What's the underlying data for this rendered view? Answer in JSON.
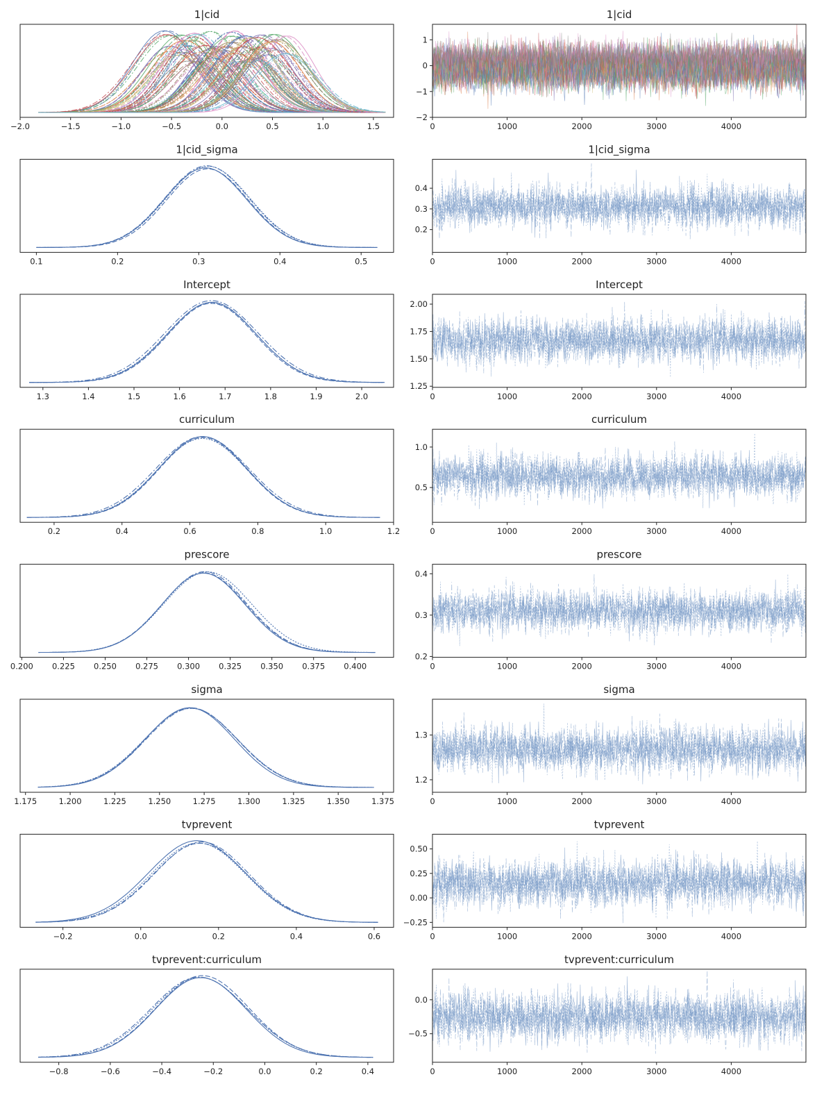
{
  "chart_data": [
    {
      "type": "line",
      "subtype": "kde",
      "title": "1|cid",
      "xlim": [
        -2.0,
        1.7
      ],
      "ticks": [
        -2.0,
        -1.5,
        -1.0,
        -0.5,
        0.0,
        0.5,
        1.0,
        1.5
      ],
      "tick_labels": [
        "−2.0",
        "−1.5",
        "−1.0",
        "−0.5",
        "0.0",
        "0.5",
        "1.0",
        "1.5"
      ],
      "support": [
        -1.82,
        1.62
      ],
      "many_groups": true,
      "group_range": [
        -0.55,
        0.6
      ],
      "group_sd": 0.3,
      "mean": 0.05,
      "sd": 0.3
    },
    {
      "type": "line",
      "subtype": "trace",
      "title": "1|cid",
      "xlim": [
        0,
        5000
      ],
      "ylim": [
        -2,
        1.6
      ],
      "xticks": [
        0,
        1000,
        2000,
        3000,
        4000
      ],
      "yticks": [
        -2,
        -1,
        0,
        1
      ],
      "ytick_labels": [
        "−2",
        "−1",
        "0",
        "1"
      ],
      "many_groups": true,
      "draw_range": [
        -1.9,
        1.6
      ],
      "mean": 0.05,
      "sd": 0.3
    },
    {
      "type": "line",
      "subtype": "kde",
      "title": "1|cid_sigma",
      "xlim": [
        0.08,
        0.54
      ],
      "ticks": [
        0.1,
        0.2,
        0.3,
        0.4,
        0.5
      ],
      "tick_labels": [
        "0.1",
        "0.2",
        "0.3",
        "0.4",
        "0.5"
      ],
      "support": [
        0.1,
        0.52
      ],
      "mean": 0.31,
      "sd": 0.05
    },
    {
      "type": "line",
      "subtype": "trace",
      "title": "1|cid_sigma",
      "xlim": [
        0,
        5000
      ],
      "ylim": [
        0.09,
        0.54
      ],
      "xticks": [
        0,
        1000,
        2000,
        3000,
        4000
      ],
      "yticks": [
        0.2,
        0.3,
        0.4
      ],
      "ytick_labels": [
        "0.2",
        "0.3",
        "0.4"
      ],
      "draw_range": [
        0.1,
        0.52
      ],
      "mean": 0.31,
      "sd": 0.05
    },
    {
      "type": "line",
      "subtype": "kde",
      "title": "Intercept",
      "xlim": [
        1.25,
        2.07
      ],
      "ticks": [
        1.3,
        1.4,
        1.5,
        1.6,
        1.7,
        1.8,
        1.9,
        2.0
      ],
      "tick_labels": [
        "1.3",
        "1.4",
        "1.5",
        "1.6",
        "1.7",
        "1.8",
        "1.9",
        "2.0"
      ],
      "support": [
        1.27,
        2.05
      ],
      "mean": 1.67,
      "sd": 0.1
    },
    {
      "type": "line",
      "subtype": "trace",
      "title": "Intercept",
      "xlim": [
        0,
        5000
      ],
      "ylim": [
        1.24,
        2.09
      ],
      "xticks": [
        0,
        1000,
        2000,
        3000,
        4000
      ],
      "yticks": [
        1.25,
        1.5,
        1.75,
        2.0
      ],
      "ytick_labels": [
        "1.25",
        "1.50",
        "1.75",
        "2.00"
      ],
      "draw_range": [
        1.27,
        2.06
      ],
      "mean": 1.67,
      "sd": 0.1
    },
    {
      "type": "line",
      "subtype": "kde",
      "title": "curriculum",
      "xlim": [
        0.1,
        1.2
      ],
      "ticks": [
        0.2,
        0.4,
        0.6,
        0.8,
        1.0,
        1.2
      ],
      "tick_labels": [
        "0.2",
        "0.4",
        "0.6",
        "0.8",
        "1.0",
        "1.2"
      ],
      "support": [
        0.12,
        1.16
      ],
      "mean": 0.64,
      "sd": 0.13
    },
    {
      "type": "line",
      "subtype": "trace",
      "title": "curriculum",
      "xlim": [
        0,
        5000
      ],
      "ylim": [
        0.07,
        1.22
      ],
      "xticks": [
        0,
        1000,
        2000,
        3000,
        4000
      ],
      "yticks": [
        0.5,
        1.0
      ],
      "ytick_labels": [
        "0.5",
        "1.0"
      ],
      "draw_range": [
        0.12,
        1.17
      ],
      "mean": 0.64,
      "sd": 0.13
    },
    {
      "type": "line",
      "subtype": "kde",
      "title": "prescore",
      "xlim": [
        0.199,
        0.423
      ],
      "ticks": [
        0.2,
        0.225,
        0.25,
        0.275,
        0.3,
        0.325,
        0.35,
        0.375,
        0.4
      ],
      "tick_labels": [
        "0.200",
        "0.225",
        "0.250",
        "0.275",
        "0.300",
        "0.325",
        "0.350",
        "0.375",
        "0.400"
      ],
      "support": [
        0.21,
        0.412
      ],
      "mean": 0.31,
      "sd": 0.025
    },
    {
      "type": "line",
      "subtype": "trace",
      "title": "prescore",
      "xlim": [
        0,
        5000
      ],
      "ylim": [
        0.198,
        0.423
      ],
      "xticks": [
        0,
        1000,
        2000,
        3000,
        4000
      ],
      "yticks": [
        0.2,
        0.3,
        0.4
      ],
      "ytick_labels": [
        "0.2",
        "0.3",
        "0.4"
      ],
      "draw_range": [
        0.21,
        0.413
      ],
      "mean": 0.31,
      "sd": 0.025
    },
    {
      "type": "line",
      "subtype": "kde",
      "title": "sigma",
      "xlim": [
        1.172,
        1.381
      ],
      "ticks": [
        1.175,
        1.2,
        1.225,
        1.25,
        1.275,
        1.3,
        1.325,
        1.35,
        1.375
      ],
      "tick_labels": [
        "1.175",
        "1.200",
        "1.225",
        "1.250",
        "1.275",
        "1.300",
        "1.325",
        "1.350",
        "1.375"
      ],
      "support": [
        1.182,
        1.37
      ],
      "mean": 1.268,
      "sd": 0.025
    },
    {
      "type": "line",
      "subtype": "trace",
      "title": "sigma",
      "xlim": [
        0,
        5000
      ],
      "ylim": [
        1.172,
        1.38
      ],
      "xticks": [
        0,
        1000,
        2000,
        3000,
        4000
      ],
      "yticks": [
        1.2,
        1.3
      ],
      "ytick_labels": [
        "1.2",
        "1.3"
      ],
      "draw_range": [
        1.18,
        1.37
      ],
      "mean": 1.268,
      "sd": 0.025
    },
    {
      "type": "line",
      "subtype": "kde",
      "title": "tvprevent",
      "xlim": [
        -0.31,
        0.65
      ],
      "ticks": [
        -0.2,
        0.0,
        0.2,
        0.4,
        0.6
      ],
      "tick_labels": [
        "−0.2",
        "0.0",
        "0.2",
        "0.4",
        "0.6"
      ],
      "support": [
        -0.27,
        0.61
      ],
      "mean": 0.15,
      "sd": 0.12
    },
    {
      "type": "line",
      "subtype": "trace",
      "title": "tvprevent",
      "xlim": [
        0,
        5000
      ],
      "ylim": [
        -0.3,
        0.65
      ],
      "xticks": [
        0,
        1000,
        2000,
        3000,
        4000
      ],
      "yticks": [
        -0.25,
        0.0,
        0.25,
        0.5
      ],
      "ytick_labels": [
        "−0.25",
        "0.00",
        "0.25",
        "0.50"
      ],
      "draw_range": [
        -0.28,
        0.62
      ],
      "mean": 0.15,
      "sd": 0.12
    },
    {
      "type": "line",
      "subtype": "kde",
      "title": "tvprevent:curriculum",
      "xlim": [
        -0.95,
        0.5
      ],
      "ticks": [
        -0.8,
        -0.6,
        -0.4,
        -0.2,
        0.0,
        0.2,
        0.4
      ],
      "tick_labels": [
        "−0.8",
        "−0.6",
        "−0.4",
        "−0.2",
        "0.0",
        "0.2",
        "0.4"
      ],
      "support": [
        -0.88,
        0.42
      ],
      "mean": -0.25,
      "sd": 0.18
    },
    {
      "type": "line",
      "subtype": "trace",
      "title": "tvprevent:curriculum",
      "xlim": [
        0,
        5000
      ],
      "ylim": [
        -0.92,
        0.45
      ],
      "xticks": [
        0,
        1000,
        2000,
        3000,
        4000
      ],
      "yticks": [
        -0.5,
        0.0
      ],
      "ytick_labels": [
        "−0.5",
        "0.0"
      ],
      "draw_range": [
        -0.9,
        0.43
      ],
      "mean": -0.25,
      "sd": 0.18
    }
  ],
  "colors": {
    "main": "#4c72b0",
    "trace": "#7396c4",
    "palette": [
      "#4c72b0",
      "#dd8452",
      "#55a868",
      "#c44e52",
      "#8172b3",
      "#937860",
      "#da8bc3",
      "#8c8c8c",
      "#ccb974",
      "#64b5cd"
    ]
  }
}
